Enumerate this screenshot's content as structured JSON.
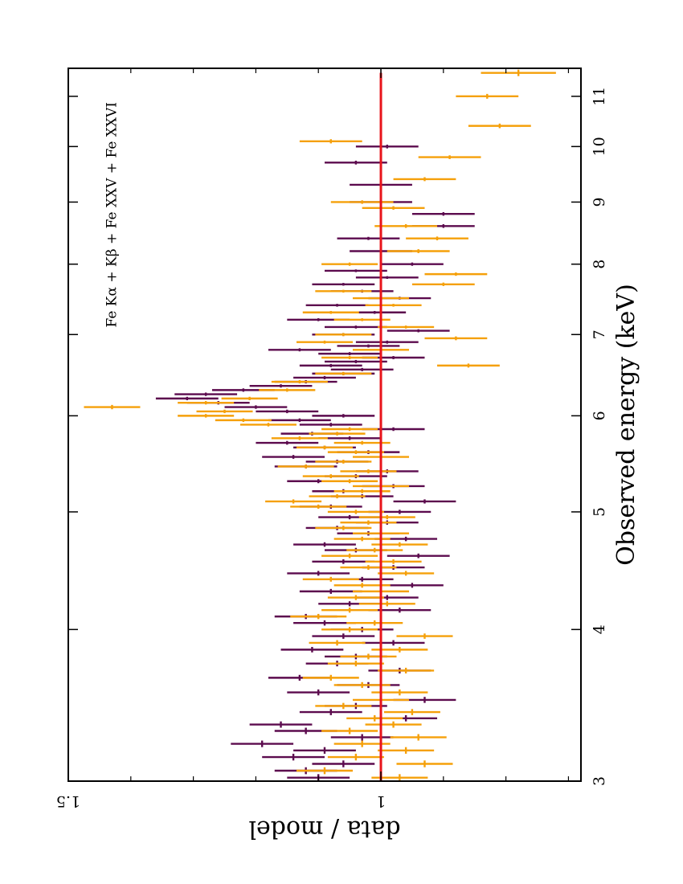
{
  "chart_data": {
    "type": "scatter",
    "orientation": "rotated-90-clockwise",
    "xlabel": "Observed energy (keV)",
    "ylabel": "data / model",
    "annotation": "Fe Kα + Kβ + Fe XXV + Fe XXVI",
    "xscale": "log",
    "xlim": [
      3,
      11.6
    ],
    "ylim": [
      1.5,
      0.68
    ],
    "x_ticks": [
      3,
      4,
      5,
      6,
      7,
      8,
      9,
      10,
      11
    ],
    "y_ticks": [
      1.5,
      1
    ],
    "reference_line": {
      "y": 1.0,
      "color": "#e8141b"
    },
    "colors": {
      "purple": "#5c0b4e",
      "orange": "#f5a00a",
      "model": "#e8141b"
    },
    "series": [
      {
        "color": "#5c0b4e",
        "points": [
          [
            3.02,
            1.1,
            0.02,
            0.05
          ],
          [
            3.06,
            1.12,
            0.02,
            0.05
          ],
          [
            3.1,
            1.06,
            0.02,
            0.05
          ],
          [
            3.14,
            1.14,
            0.02,
            0.05
          ],
          [
            3.18,
            1.09,
            0.02,
            0.05
          ],
          [
            3.22,
            1.19,
            0.02,
            0.05
          ],
          [
            3.26,
            1.03,
            0.02,
            0.05
          ],
          [
            3.3,
            1.12,
            0.02,
            0.05
          ],
          [
            3.34,
            1.16,
            0.02,
            0.05
          ],
          [
            3.38,
            0.96,
            0.02,
            0.05
          ],
          [
            3.42,
            1.08,
            0.02,
            0.05
          ],
          [
            3.46,
            1.04,
            0.02,
            0.05
          ],
          [
            3.5,
            0.93,
            0.02,
            0.05
          ],
          [
            3.55,
            1.1,
            0.02,
            0.05
          ],
          [
            3.6,
            1.02,
            0.02,
            0.05
          ],
          [
            3.65,
            1.13,
            0.02,
            0.05
          ],
          [
            3.7,
            0.97,
            0.02,
            0.05
          ],
          [
            3.75,
            1.07,
            0.02,
            0.05
          ],
          [
            3.8,
            1.04,
            0.02,
            0.05
          ],
          [
            3.85,
            1.11,
            0.02,
            0.05
          ],
          [
            3.9,
            0.98,
            0.02,
            0.05
          ],
          [
            3.95,
            1.06,
            0.02,
            0.05
          ],
          [
            4.0,
            1.03,
            0.02,
            0.05
          ],
          [
            4.05,
            1.09,
            0.02,
            0.05
          ],
          [
            4.1,
            1.12,
            0.02,
            0.05
          ],
          [
            4.15,
            0.97,
            0.02,
            0.05
          ],
          [
            4.2,
            1.05,
            0.02,
            0.05
          ],
          [
            4.25,
            0.99,
            0.02,
            0.05
          ],
          [
            4.3,
            1.08,
            0.02,
            0.05
          ],
          [
            4.35,
            0.95,
            0.02,
            0.05
          ],
          [
            4.4,
            1.03,
            0.02,
            0.05
          ],
          [
            4.45,
            1.1,
            0.02,
            0.05
          ],
          [
            4.5,
            0.98,
            0.02,
            0.05
          ],
          [
            4.55,
            1.06,
            0.02,
            0.05
          ],
          [
            4.6,
            0.94,
            0.02,
            0.05
          ],
          [
            4.65,
            1.04,
            0.02,
            0.05
          ],
          [
            4.7,
            1.09,
            0.02,
            0.05
          ],
          [
            4.75,
            0.96,
            0.02,
            0.05
          ],
          [
            4.8,
            1.02,
            0.02,
            0.05
          ],
          [
            4.85,
            1.07,
            0.02,
            0.05
          ],
          [
            4.9,
            0.99,
            0.02,
            0.05
          ],
          [
            4.95,
            1.05,
            0.02,
            0.05
          ],
          [
            5.0,
            0.97,
            0.02,
            0.05
          ],
          [
            5.05,
            1.08,
            0.02,
            0.05
          ],
          [
            5.1,
            0.93,
            0.02,
            0.05
          ],
          [
            5.15,
            1.03,
            0.02,
            0.05
          ],
          [
            5.2,
            1.06,
            0.02,
            0.05
          ],
          [
            5.25,
            0.98,
            0.02,
            0.05
          ],
          [
            5.3,
            1.1,
            0.02,
            0.05
          ],
          [
            5.35,
            1.04,
            0.02,
            0.05
          ],
          [
            5.4,
            0.99,
            0.02,
            0.05
          ],
          [
            5.45,
            1.12,
            0.02,
            0.05
          ],
          [
            5.5,
            1.07,
            0.02,
            0.05
          ],
          [
            5.55,
            1.14,
            0.02,
            0.05
          ],
          [
            5.6,
            1.02,
            0.02,
            0.05
          ],
          [
            5.65,
            1.09,
            0.02,
            0.05
          ],
          [
            5.7,
            1.15,
            0.02,
            0.05
          ],
          [
            5.75,
            1.05,
            0.02,
            0.05
          ],
          [
            5.8,
            1.11,
            0.02,
            0.05
          ],
          [
            5.85,
            0.98,
            0.02,
            0.05
          ],
          [
            5.9,
            1.08,
            0.02,
            0.05
          ],
          [
            5.95,
            1.13,
            0.02,
            0.05
          ],
          [
            6.0,
            1.06,
            0.02,
            0.05
          ],
          [
            6.05,
            1.15,
            0.02,
            0.05
          ],
          [
            6.1,
            1.2,
            0.02,
            0.05
          ],
          [
            6.15,
            1.26,
            0.02,
            0.05
          ],
          [
            6.2,
            1.31,
            0.02,
            0.05
          ],
          [
            6.25,
            1.28,
            0.02,
            0.05
          ],
          [
            6.3,
            1.22,
            0.02,
            0.05
          ],
          [
            6.35,
            1.16,
            0.02,
            0.05
          ],
          [
            6.4,
            1.12,
            0.02,
            0.05
          ],
          [
            6.45,
            1.09,
            0.02,
            0.05
          ],
          [
            6.5,
            1.06,
            0.02,
            0.05
          ],
          [
            6.55,
            1.03,
            0.02,
            0.05
          ],
          [
            6.6,
            1.08,
            0.02,
            0.05
          ],
          [
            6.65,
            1.04,
            0.02,
            0.05
          ],
          [
            6.7,
            0.98,
            0.02,
            0.05
          ],
          [
            6.75,
            1.05,
            0.02,
            0.05
          ],
          [
            6.8,
            1.13,
            0.02,
            0.05
          ],
          [
            6.85,
            1.02,
            0.02,
            0.05
          ],
          [
            6.9,
            0.99,
            0.02,
            0.05
          ],
          [
            7.0,
            1.06,
            0.02,
            0.05
          ],
          [
            7.05,
            0.94,
            0.02,
            0.05
          ],
          [
            7.1,
            1.04,
            0.02,
            0.05
          ],
          [
            7.2,
            1.1,
            0.02,
            0.05
          ],
          [
            7.3,
            1.01,
            0.02,
            0.05
          ],
          [
            7.4,
            1.07,
            0.02,
            0.05
          ],
          [
            7.5,
            0.97,
            0.02,
            0.05
          ],
          [
            7.6,
            1.03,
            0.02,
            0.05
          ],
          [
            7.7,
            1.06,
            0.02,
            0.05
          ],
          [
            7.8,
            0.99,
            0.02,
            0.05
          ],
          [
            7.9,
            1.04,
            0.02,
            0.05
          ],
          [
            8.0,
            0.95,
            0.025,
            0.05
          ],
          [
            8.2,
            1.0,
            0.025,
            0.05
          ],
          [
            8.4,
            1.02,
            0.025,
            0.05
          ],
          [
            8.6,
            0.9,
            0.03,
            0.05
          ],
          [
            8.8,
            0.9,
            0.03,
            0.05
          ],
          [
            9.0,
            1.0,
            0.03,
            0.05
          ],
          [
            9.3,
            1.0,
            0.03,
            0.05
          ],
          [
            9.7,
            1.04,
            0.035,
            0.05
          ],
          [
            10.0,
            0.99,
            0.035,
            0.05
          ]
        ]
      },
      {
        "color": "#f5a00a",
        "points": [
          [
            3.02,
            0.97,
            0.02,
            0.045
          ],
          [
            3.06,
            1.09,
            0.02,
            0.045
          ],
          [
            3.1,
            0.93,
            0.02,
            0.045
          ],
          [
            3.14,
            1.04,
            0.02,
            0.045
          ],
          [
            3.18,
            0.96,
            0.02,
            0.045
          ],
          [
            3.22,
            1.03,
            0.02,
            0.045
          ],
          [
            3.26,
            0.94,
            0.02,
            0.045
          ],
          [
            3.3,
            1.05,
            0.02,
            0.045
          ],
          [
            3.34,
            0.98,
            0.02,
            0.045
          ],
          [
            3.38,
            1.01,
            0.02,
            0.045
          ],
          [
            3.42,
            0.95,
            0.02,
            0.045
          ],
          [
            3.46,
            1.06,
            0.02,
            0.045
          ],
          [
            3.5,
            1.0,
            0.02,
            0.045
          ],
          [
            3.55,
            0.97,
            0.02,
            0.045
          ],
          [
            3.6,
            1.03,
            0.02,
            0.045
          ],
          [
            3.65,
            1.08,
            0.02,
            0.045
          ],
          [
            3.7,
            0.96,
            0.02,
            0.045
          ],
          [
            3.75,
            1.04,
            0.02,
            0.045
          ],
          [
            3.8,
            1.02,
            0.02,
            0.045
          ],
          [
            3.85,
            0.97,
            0.02,
            0.045
          ],
          [
            3.9,
            1.07,
            0.02,
            0.045
          ],
          [
            3.95,
            0.93,
            0.02,
            0.045
          ],
          [
            4.0,
            1.05,
            0.02,
            0.045
          ],
          [
            4.05,
            1.01,
            0.02,
            0.045
          ],
          [
            4.1,
            1.1,
            0.02,
            0.045
          ],
          [
            4.15,
            1.05,
            0.02,
            0.045
          ],
          [
            4.2,
            0.99,
            0.02,
            0.045
          ],
          [
            4.25,
            1.04,
            0.02,
            0.045
          ],
          [
            4.3,
            1.0,
            0.02,
            0.045
          ],
          [
            4.35,
            1.03,
            0.02,
            0.045
          ],
          [
            4.4,
            1.08,
            0.02,
            0.045
          ],
          [
            4.45,
            0.96,
            0.02,
            0.045
          ],
          [
            4.5,
            1.02,
            0.02,
            0.045
          ],
          [
            4.55,
            0.98,
            0.02,
            0.045
          ],
          [
            4.6,
            1.05,
            0.02,
            0.045
          ],
          [
            4.65,
            1.01,
            0.02,
            0.045
          ],
          [
            4.7,
            0.97,
            0.02,
            0.045
          ],
          [
            4.75,
            1.03,
            0.02,
            0.045
          ],
          [
            4.8,
            1.0,
            0.02,
            0.045
          ],
          [
            4.85,
            1.06,
            0.02,
            0.045
          ],
          [
            4.9,
            1.02,
            0.02,
            0.045
          ],
          [
            4.95,
            0.99,
            0.02,
            0.045
          ],
          [
            5.0,
            1.04,
            0.02,
            0.045
          ],
          [
            5.05,
            1.1,
            0.02,
            0.045
          ],
          [
            5.1,
            1.14,
            0.02,
            0.045
          ],
          [
            5.15,
            1.07,
            0.02,
            0.045
          ],
          [
            5.2,
            1.03,
            0.02,
            0.045
          ],
          [
            5.25,
            1.0,
            0.02,
            0.045
          ],
          [
            5.3,
            1.05,
            0.02,
            0.045
          ],
          [
            5.35,
            1.08,
            0.02,
            0.045
          ],
          [
            5.4,
            1.02,
            0.02,
            0.045
          ],
          [
            5.45,
            1.12,
            0.02,
            0.045
          ],
          [
            5.5,
            1.06,
            0.02,
            0.045
          ],
          [
            5.55,
            1.0,
            0.02,
            0.045
          ],
          [
            5.6,
            1.04,
            0.02,
            0.045
          ],
          [
            5.65,
            1.09,
            0.02,
            0.045
          ],
          [
            5.7,
            1.03,
            0.02,
            0.045
          ],
          [
            5.75,
            1.13,
            0.02,
            0.045
          ],
          [
            5.8,
            1.07,
            0.02,
            0.045
          ],
          [
            5.85,
            1.05,
            0.02,
            0.045
          ],
          [
            5.9,
            1.18,
            0.02,
            0.045
          ],
          [
            5.95,
            1.22,
            0.02,
            0.045
          ],
          [
            6.0,
            1.28,
            0.02,
            0.045
          ],
          [
            6.05,
            1.25,
            0.02,
            0.045
          ],
          [
            6.1,
            1.43,
            0.025,
            0.045
          ],
          [
            6.15,
            1.28,
            0.02,
            0.045
          ],
          [
            6.2,
            1.21,
            0.02,
            0.045
          ],
          [
            6.3,
            1.15,
            0.02,
            0.045
          ],
          [
            6.4,
            1.13,
            0.02,
            0.045
          ],
          [
            6.5,
            1.06,
            0.02,
            0.045
          ],
          [
            6.6,
            0.86,
            0.025,
            0.05
          ],
          [
            6.7,
            1.05,
            0.02,
            0.045
          ],
          [
            6.8,
            1.0,
            0.02,
            0.045
          ],
          [
            6.9,
            1.09,
            0.02,
            0.045
          ],
          [
            6.95,
            0.88,
            0.025,
            0.05
          ],
          [
            7.0,
            1.06,
            0.02,
            0.045
          ],
          [
            7.1,
            0.96,
            0.02,
            0.045
          ],
          [
            7.2,
            1.03,
            0.02,
            0.045
          ],
          [
            7.3,
            1.08,
            0.02,
            0.045
          ],
          [
            7.4,
            0.98,
            0.02,
            0.045
          ],
          [
            7.5,
            1.0,
            0.02,
            0.045
          ],
          [
            7.6,
            1.06,
            0.02,
            0.045
          ],
          [
            7.7,
            0.9,
            0.025,
            0.05
          ],
          [
            7.85,
            0.88,
            0.025,
            0.05
          ],
          [
            8.0,
            1.05,
            0.025,
            0.045
          ],
          [
            8.2,
            0.94,
            0.03,
            0.05
          ],
          [
            8.4,
            0.91,
            0.03,
            0.05
          ],
          [
            8.6,
            0.96,
            0.03,
            0.05
          ],
          [
            8.9,
            0.98,
            0.03,
            0.05
          ],
          [
            9.0,
            1.03,
            0.03,
            0.05
          ],
          [
            9.4,
            0.93,
            0.035,
            0.05
          ],
          [
            9.8,
            0.89,
            0.035,
            0.05
          ],
          [
            10.1,
            1.08,
            0.04,
            0.05
          ],
          [
            10.4,
            0.81,
            0.045,
            0.05
          ],
          [
            11.0,
            0.83,
            0.05,
            0.05
          ],
          [
            11.5,
            0.78,
            0.07,
            0.06
          ]
        ]
      }
    ]
  }
}
